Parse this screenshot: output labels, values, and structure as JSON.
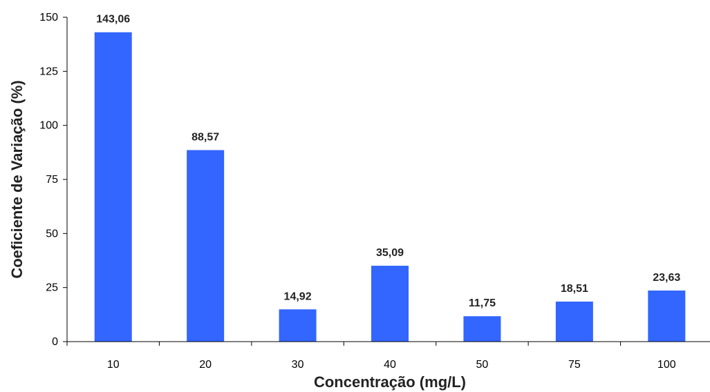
{
  "chart_data": {
    "type": "bar",
    "title": "",
    "xlabel": "Concentração (mg/L)",
    "ylabel": "Coeficiente de Variação (%)",
    "categories": [
      "10",
      "20",
      "30",
      "40",
      "50",
      "75",
      "100"
    ],
    "values": [
      143.06,
      88.57,
      14.92,
      35.09,
      11.75,
      18.51,
      23.63
    ],
    "value_labels": [
      "143,06",
      "88,57",
      "14,92",
      "35,09",
      "11,75",
      "18,51",
      "23,63"
    ],
    "ylim": [
      0,
      150
    ],
    "yticks": [
      0,
      25,
      50,
      75,
      100,
      125,
      150
    ],
    "ytick_labels": [
      "0",
      "25",
      "50",
      "75",
      "100",
      "125",
      "150"
    ],
    "grid": false,
    "legend": "none",
    "bar_color": "#3366FF"
  }
}
